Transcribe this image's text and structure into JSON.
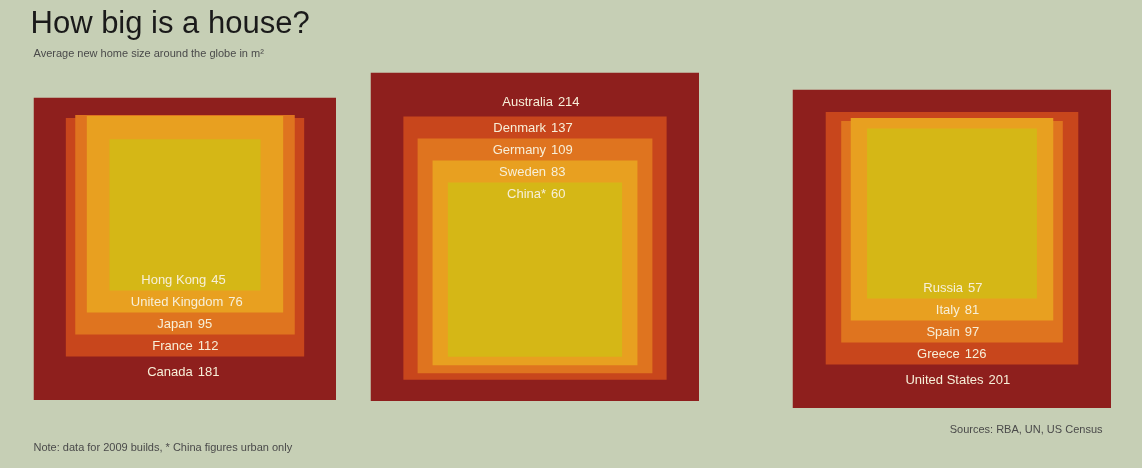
{
  "chart_data": [
    {
      "type": "other",
      "title": "How big is a house?",
      "subtitle": "Average new home size around the globe in m²",
      "categories": [
        "Canada",
        "France",
        "Japan",
        "United Kingdom",
        "Hong Kong"
      ],
      "values": [
        181,
        112,
        95,
        76,
        45
      ],
      "colors": [
        "#8e1f1d",
        "#c8461c",
        "#df741f",
        "#e8a020",
        "#d5b716"
      ],
      "data_labels": true,
      "annotations": [
        "Note: data for 2009 builds, * China figures urban only"
      ]
    },
    {
      "type": "other",
      "categories": [
        "Australia",
        "Denmark",
        "Germany",
        "Sweden",
        "China*"
      ],
      "values": [
        214,
        137,
        109,
        83,
        60
      ],
      "colors": [
        "#8e1f1d",
        "#c8461c",
        "#df741f",
        "#e8a020",
        "#d5b716"
      ],
      "data_labels": true
    },
    {
      "type": "other",
      "categories": [
        "United States",
        "Greece",
        "Spain",
        "Italy",
        "Russia"
      ],
      "values": [
        201,
        126,
        97,
        81,
        57
      ],
      "colors": [
        "#8e1f1d",
        "#c8461c",
        "#df741f",
        "#e8a020",
        "#d5b716"
      ],
      "data_labels": true,
      "annotations": [
        "Sources: RBA, UN, US Census"
      ]
    }
  ]
}
